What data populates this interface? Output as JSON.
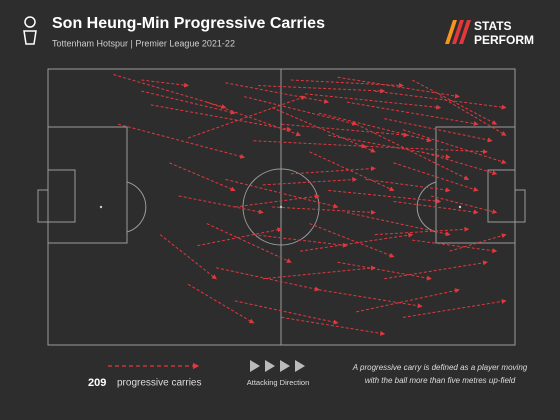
{
  "chart_data": {
    "type": "carries",
    "title": "Son Heung-Min Progressive Carries",
    "subtitle": "Tottenham Hotspur | Premier League 2021-22",
    "logo": [
      "STATS",
      "PERFORM"
    ],
    "count": 209,
    "count_label": "progressive carries",
    "direction_label": "Attacking Direction",
    "definition": [
      "A progressive carry is defined as a player moving",
      "with the ball more than five metres up-field"
    ],
    "color": "#e2383d",
    "xlim": [
      0,
      100
    ],
    "ylim": [
      0,
      100
    ],
    "carries": [
      [
        14,
        2,
        38,
        14
      ],
      [
        20,
        8,
        40,
        16
      ],
      [
        22,
        13,
        52,
        22
      ],
      [
        15,
        20,
        42,
        32
      ],
      [
        26,
        34,
        40,
        44
      ],
      [
        30,
        25,
        55,
        10
      ],
      [
        38,
        5,
        60,
        12
      ],
      [
        42,
        10,
        66,
        20
      ],
      [
        45,
        6,
        72,
        8
      ],
      [
        48,
        14,
        70,
        30
      ],
      [
        50,
        20,
        77,
        24
      ],
      [
        52,
        4,
        76,
        6
      ],
      [
        55,
        9,
        84,
        14
      ],
      [
        58,
        16,
        82,
        26
      ],
      [
        60,
        24,
        86,
        32
      ],
      [
        62,
        3,
        88,
        10
      ],
      [
        64,
        12,
        92,
        20
      ],
      [
        66,
        20,
        90,
        40
      ],
      [
        68,
        28,
        94,
        30
      ],
      [
        70,
        8,
        98,
        14
      ],
      [
        72,
        18,
        95,
        26
      ],
      [
        74,
        34,
        92,
        44
      ],
      [
        76,
        22,
        98,
        34
      ],
      [
        78,
        4,
        96,
        20
      ],
      [
        80,
        30,
        96,
        38
      ],
      [
        56,
        30,
        74,
        44
      ],
      [
        52,
        38,
        70,
        36
      ],
      [
        46,
        42,
        66,
        40
      ],
      [
        40,
        50,
        58,
        46
      ],
      [
        34,
        56,
        52,
        70
      ],
      [
        32,
        64,
        50,
        58
      ],
      [
        36,
        72,
        58,
        80
      ],
      [
        30,
        78,
        44,
        92
      ],
      [
        40,
        84,
        62,
        92
      ],
      [
        46,
        76,
        70,
        72
      ],
      [
        50,
        90,
        72,
        96
      ],
      [
        54,
        66,
        78,
        60
      ],
      [
        58,
        80,
        80,
        86
      ],
      [
        62,
        70,
        82,
        76
      ],
      [
        66,
        88,
        88,
        80
      ],
      [
        70,
        60,
        90,
        58
      ],
      [
        72,
        76,
        94,
        70
      ],
      [
        76,
        90,
        98,
        84
      ],
      [
        44,
        60,
        64,
        64
      ],
      [
        38,
        40,
        62,
        50
      ],
      [
        28,
        46,
        46,
        52
      ],
      [
        48,
        50,
        70,
        52
      ],
      [
        60,
        44,
        84,
        48
      ],
      [
        64,
        52,
        86,
        60
      ],
      [
        84,
        10,
        98,
        24
      ],
      [
        82,
        46,
        96,
        52
      ],
      [
        86,
        66,
        98,
        60
      ],
      [
        34,
        12,
        54,
        24
      ],
      [
        24,
        60,
        36,
        76
      ],
      [
        56,
        56,
        74,
        68
      ],
      [
        68,
        40,
        86,
        44
      ],
      [
        44,
        26,
        68,
        28
      ],
      [
        74,
        48,
        92,
        52
      ],
      [
        78,
        62,
        96,
        66
      ],
      [
        20,
        4,
        30,
        6
      ]
    ]
  }
}
